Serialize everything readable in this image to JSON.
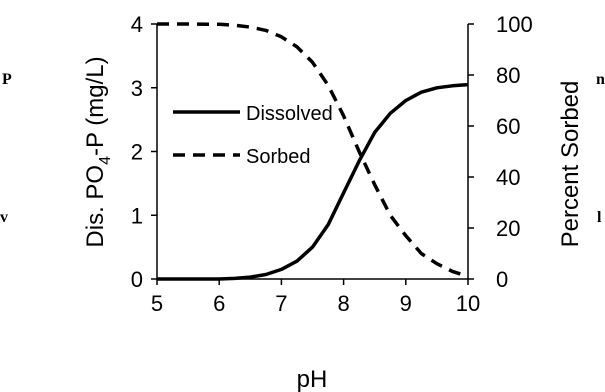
{
  "chart_data": {
    "type": "line",
    "x": [
      5.0,
      5.5,
      6.0,
      6.25,
      6.5,
      6.75,
      7.0,
      7.25,
      7.5,
      7.75,
      8.0,
      8.25,
      8.5,
      8.75,
      9.0,
      9.25,
      9.5,
      9.75,
      10.0
    ],
    "series": [
      {
        "name": "Dissolved",
        "axis": "left",
        "style": "solid",
        "color": "#000000",
        "values": [
          0.0,
          0.0,
          0.0,
          0.01,
          0.03,
          0.07,
          0.15,
          0.28,
          0.5,
          0.85,
          1.35,
          1.85,
          2.3,
          2.6,
          2.8,
          2.93,
          3.0,
          3.03,
          3.05
        ]
      },
      {
        "name": "Sorbed",
        "axis": "right",
        "style": "dashed",
        "color": "#000000",
        "values": [
          100,
          100,
          99.9,
          99.5,
          98.8,
          97.5,
          95,
          91,
          85,
          76,
          64,
          50,
          37,
          25,
          17,
          10,
          6,
          3,
          1
        ]
      }
    ],
    "xlabel": "pH",
    "ylabel_left_main": "Dis. PO",
    "ylabel_left_sub": "4",
    "ylabel_left_rest": "-P (mg/L)",
    "ylabel_right": "Percent Sorbed",
    "xlim": [
      5,
      10
    ],
    "ylim_left": [
      0,
      4
    ],
    "ylim_right": [
      0,
      100
    ],
    "xticks": [
      "5",
      "6",
      "7",
      "8",
      "9",
      "10"
    ],
    "yticks_left": [
      "0",
      "1",
      "2",
      "3",
      "4"
    ],
    "yticks_right": [
      "0",
      "20",
      "40",
      "60",
      "80",
      "100"
    ],
    "grid": false,
    "legend": "upper-left inside",
    "legend_labels": [
      "Dissolved",
      "Sorbed"
    ]
  },
  "edge_text": {
    "left_top": "P",
    "left_bottom": "v",
    "right_top": "n",
    "right_bottom": "l"
  }
}
